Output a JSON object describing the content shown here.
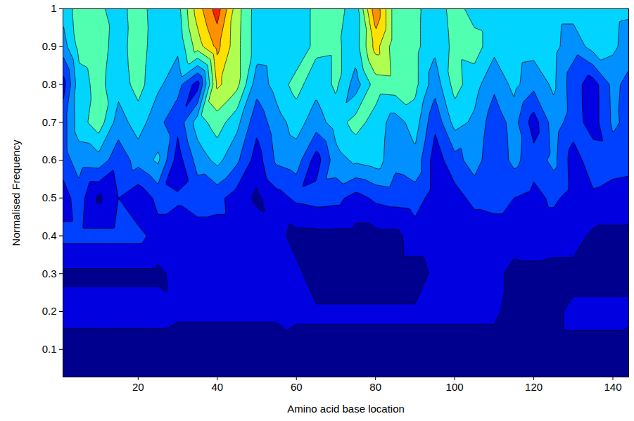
{
  "chart_data": {
    "type": "contour",
    "xlabel": "Amino acid base location",
    "ylabel": "Normalised Frequency",
    "xlim": [
      1,
      144
    ],
    "ylim": [
      0.027,
      1
    ],
    "xticks": [
      20,
      40,
      60,
      80,
      100,
      120,
      140
    ],
    "yticks": [
      0.1,
      0.2,
      0.3,
      0.4,
      0.5,
      0.6,
      0.7,
      0.8,
      0.9,
      1
    ],
    "zlim": [
      0,
      10
    ],
    "colors": [
      "#00008f",
      "#0000e0",
      "#0040ff",
      "#0090ff",
      "#00d4ff",
      "#50ffb0",
      "#b0ff50",
      "#ffe000",
      "#ff9000",
      "#ff2000"
    ],
    "x": [
      1,
      5,
      10,
      15,
      20,
      25,
      30,
      35,
      40,
      45,
      50,
      55,
      60,
      65,
      70,
      75,
      80,
      85,
      90,
      95,
      100,
      105,
      110,
      115,
      120,
      125,
      130,
      135,
      140,
      145
    ],
    "y": [
      0.02,
      0.1,
      0.2,
      0.3,
      0.4,
      0.5,
      0.6,
      0.7,
      0.8,
      0.9,
      1.0
    ],
    "values": [
      [
        0.4,
        0.4,
        0.4,
        0.4,
        0.4,
        0.4,
        0.4,
        0.4,
        0.4,
        0.4,
        0.4,
        0.4,
        0.4,
        0.4,
        0.4,
        0.4,
        0.4,
        0.4,
        0.4,
        0.4,
        0.4,
        0.4,
        0.4,
        0.4,
        0.4,
        0.4,
        0.4,
        0.4,
        0.4,
        0.4
      ],
      [
        0.5,
        0.5,
        0.5,
        0.5,
        0.5,
        0.5,
        0.5,
        0.5,
        0.5,
        0.5,
        0.5,
        0.5,
        0.8,
        0.8,
        0.8,
        0.8,
        0.8,
        0.8,
        0.8,
        0.8,
        0.8,
        0.8,
        0.8,
        0.8,
        0.8,
        0.8,
        0.8,
        0.8,
        0.8,
        0.6
      ],
      [
        1.4,
        1.4,
        1.4,
        1.4,
        1.4,
        1.4,
        1.2,
        1.2,
        1.2,
        1.2,
        1.2,
        1.2,
        1.1,
        1.1,
        1.1,
        1.1,
        1.1,
        1.1,
        1.1,
        1.1,
        1.1,
        1.1,
        1.1,
        0.8,
        0.8,
        0.8,
        1.2,
        1.2,
        1.2,
        1.2
      ],
      [
        0.8,
        0.8,
        0.8,
        0.8,
        0.8,
        0.8,
        1.3,
        1.3,
        1.3,
        1.3,
        1.3,
        1.2,
        1.2,
        0.6,
        0.6,
        0.6,
        0.6,
        0.6,
        0.6,
        1.2,
        1.2,
        1.2,
        1.2,
        0.8,
        0.8,
        0.7,
        0.7,
        0.7,
        0.7,
        0.7
      ],
      [
        2.3,
        2.3,
        2.3,
        2.3,
        2.3,
        1.6,
        1.6,
        1.6,
        1.6,
        1.6,
        1.6,
        1.3,
        0.7,
        0.7,
        0.7,
        0.7,
        0.7,
        0.7,
        1.5,
        1.5,
        1.5,
        1.3,
        1.3,
        1.3,
        1.4,
        1.4,
        1.4,
        0.8,
        0.8,
        0.8
      ],
      [
        1.5,
        2.5,
        0.8,
        2.0,
        1.2,
        2.3,
        2.1,
        2.4,
        2.3,
        1.5,
        0.8,
        1.6,
        2.2,
        2.4,
        2.3,
        1.6,
        2.2,
        2.4,
        2.5,
        1.5,
        1.6,
        2.3,
        2.5,
        2.0,
        1.7,
        2.2,
        1.6,
        1.8,
        1.5,
        1.4
      ],
      [
        2.5,
        3.5,
        3.6,
        2.4,
        3.4,
        4.2,
        1.5,
        3.4,
        4.3,
        3.2,
        1.5,
        3.2,
        3.5,
        1.5,
        3.6,
        4.2,
        4.5,
        3.3,
        3.7,
        1.5,
        2.6,
        3.5,
        2.2,
        3.3,
        2.4,
        3.3,
        1.5,
        2.6,
        2.5,
        2.4
      ],
      [
        2.5,
        4.5,
        5.6,
        3.5,
        4.5,
        3.3,
        2.3,
        4.5,
        5.5,
        4.3,
        2.3,
        3.6,
        4.4,
        3.5,
        4.5,
        5.4,
        4.6,
        3.5,
        4.5,
        2.2,
        4.4,
        3.8,
        2.4,
        3.4,
        1.5,
        3.5,
        2.5,
        1.5,
        3.2,
        2.6
      ],
      [
        1.5,
        4.6,
        5.3,
        4.4,
        5.4,
        4.2,
        3.4,
        1.5,
        7.2,
        6.3,
        3.4,
        4.4,
        5.4,
        4.3,
        5.2,
        3.5,
        5.5,
        5.6,
        5.3,
        3.4,
        5.4,
        4.4,
        3.2,
        4.3,
        3.3,
        4.2,
        2.4,
        1.5,
        3.3,
        2.5
      ],
      [
        3.5,
        5.3,
        5.5,
        4.5,
        5.6,
        4.3,
        4.2,
        6.5,
        8.3,
        6.3,
        4.5,
        4.6,
        4.3,
        5.3,
        5.2,
        4.5,
        7.4,
        5.4,
        5.3,
        4.2,
        5.3,
        5.5,
        4.3,
        4.5,
        4.4,
        4.3,
        3.4,
        4.4,
        4.2,
        3.4
      ],
      [
        4.3,
        5.5,
        5.2,
        4.6,
        5.5,
        4.4,
        4.6,
        7.5,
        9.5,
        6.4,
        4.5,
        4.4,
        4.3,
        5.3,
        5.5,
        4.4,
        8.8,
        5.4,
        5.3,
        4.3,
        5.5,
        4.5,
        4.3,
        4.4,
        4.6,
        4.4,
        4.4,
        4.4,
        4.3,
        4.2
      ]
    ]
  }
}
